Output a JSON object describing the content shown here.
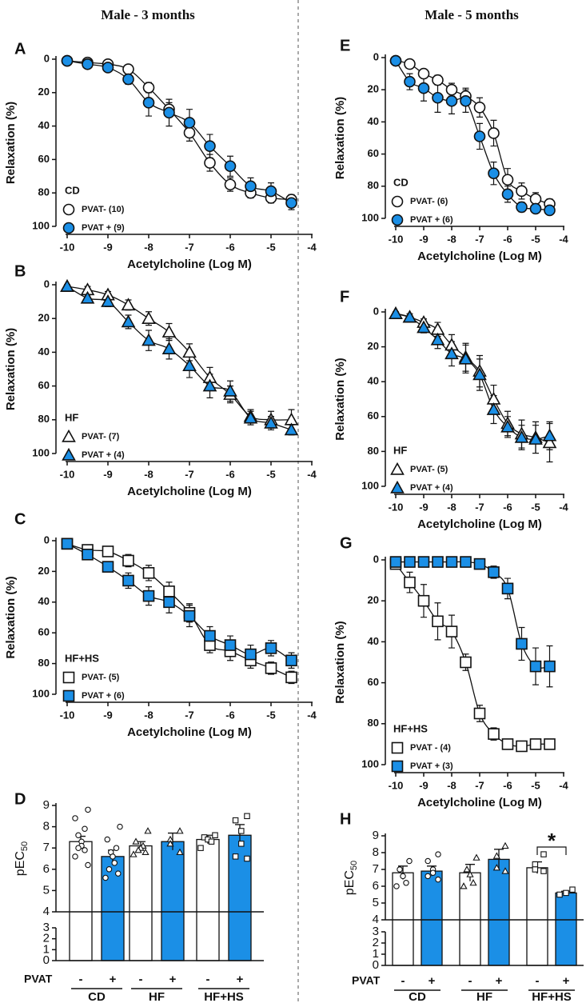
{
  "headers": [
    "Male - 3 months",
    "Male - 5 months"
  ],
  "chart_data": [
    {
      "type": "scatter",
      "panel": "A",
      "group": "CD",
      "marker": "circle",
      "xlabel": "Acetylcholine (Log M)",
      "ylabel": "Relaxation (%)",
      "x": [
        -10,
        -9.5,
        -9,
        -8.5,
        -8,
        -7.5,
        -7,
        -6.5,
        -6,
        -5.5,
        -5,
        -4.5
      ],
      "xlim": [
        -10,
        -4
      ],
      "xticks": [
        -10,
        -9,
        -8,
        -7,
        -6,
        -5,
        -4
      ],
      "ylim": [
        0,
        100
      ],
      "yticks": [
        0,
        20,
        40,
        60,
        80,
        100
      ],
      "y_inverted": true,
      "series": [
        {
          "name": "PVAT- (10)",
          "color": "#ffffff",
          "values": [
            1,
            2,
            3,
            6,
            17,
            30,
            44,
            62,
            75,
            80,
            83,
            84
          ],
          "errors": [
            1,
            1,
            1,
            2,
            3,
            4,
            5,
            5,
            4,
            3,
            3,
            3
          ]
        },
        {
          "name": "PVAT + (9)",
          "color": "#1b8fe6",
          "values": [
            1,
            3,
            5,
            12,
            26,
            32,
            38,
            52,
            64,
            76,
            79,
            86
          ],
          "errors": [
            1,
            1,
            2,
            3,
            8,
            8,
            8,
            7,
            6,
            5,
            5,
            4
          ]
        }
      ]
    },
    {
      "type": "scatter",
      "panel": "B",
      "group": "HF",
      "marker": "triangle",
      "xlabel": "Acetylcholine (Log M)",
      "ylabel": "Relaxation (%)",
      "x": [
        -10,
        -9.5,
        -9,
        -8.5,
        -8,
        -7.5,
        -7,
        -6.5,
        -6,
        -5.5,
        -5,
        -4.5
      ],
      "xlim": [
        -10,
        -4
      ],
      "xticks": [
        -10,
        -9,
        -8,
        -7,
        -6,
        -5,
        -4
      ],
      "ylim": [
        0,
        100
      ],
      "yticks": [
        0,
        20,
        40,
        60,
        80,
        100
      ],
      "y_inverted": true,
      "series": [
        {
          "name": "PVAT- (7)",
          "color": "#ffffff",
          "values": [
            1,
            3,
            6,
            12,
            20,
            28,
            40,
            55,
            65,
            78,
            80,
            80
          ],
          "errors": [
            1,
            2,
            2,
            3,
            4,
            5,
            5,
            6,
            5,
            4,
            5,
            6
          ]
        },
        {
          "name": "PVAT + (4)",
          "color": "#1b8fe6",
          "values": [
            1,
            8,
            10,
            22,
            33,
            38,
            48,
            60,
            63,
            79,
            82,
            86
          ],
          "errors": [
            1,
            2,
            3,
            4,
            6,
            6,
            7,
            7,
            6,
            4,
            4,
            3
          ]
        }
      ]
    },
    {
      "type": "scatter",
      "panel": "C",
      "group": "HF+HS",
      "marker": "square",
      "xlabel": "Acetylcholine (Log M)",
      "ylabel": "Relaxation (%)",
      "x": [
        -10,
        -9.5,
        -9,
        -8.5,
        -8,
        -7.5,
        -7,
        -6.5,
        -6,
        -5.5,
        -5,
        -4.5
      ],
      "xlim": [
        -10,
        -4
      ],
      "xticks": [
        -10,
        -9,
        -8,
        -7,
        -6,
        -5,
        -4
      ],
      "ylim": [
        0,
        100
      ],
      "yticks": [
        0,
        20,
        40,
        60,
        80,
        100
      ],
      "y_inverted": true,
      "series": [
        {
          "name": "PVAT- (5)",
          "color": "#ffffff",
          "values": [
            2,
            6,
            7,
            13,
            21,
            33,
            47,
            68,
            72,
            78,
            83,
            89
          ],
          "errors": [
            1,
            2,
            3,
            4,
            5,
            6,
            6,
            5,
            6,
            5,
            4,
            4
          ]
        },
        {
          "name": "PVAT + (6)",
          "color": "#1b8fe6",
          "values": [
            2,
            9,
            17,
            26,
            36,
            40,
            49,
            62,
            68,
            74,
            70,
            78
          ],
          "errors": [
            1,
            2,
            3,
            5,
            6,
            7,
            7,
            6,
            6,
            6,
            5,
            5
          ]
        }
      ]
    },
    {
      "type": "bar",
      "panel": "D",
      "ylabel": "pEC",
      "ylabel_subscript": "50",
      "factor": "PVAT",
      "categories": [
        "CD",
        "HF",
        "HF+HS"
      ],
      "markers": [
        "circle",
        "triangle",
        "square"
      ],
      "ylim": [
        0,
        9
      ],
      "yticks": [
        0,
        1,
        2,
        3,
        4,
        5,
        6,
        7,
        8,
        9
      ],
      "axis_break": [
        3,
        4
      ],
      "series": [
        {
          "name": "-",
          "color": "#ffffff",
          "values": [
            7.3,
            7.1,
            7.4
          ],
          "errors": [
            0.25,
            0.2,
            0.2
          ],
          "points": [
            [
              8.8,
              8.4,
              7.9,
              7.6,
              7.3,
              7.1,
              7.0,
              6.9,
              6.6,
              6.2
            ],
            [
              7.8,
              7.3,
              7.1,
              7.0,
              6.9,
              6.8,
              6.7
            ],
            [
              7.6,
              7.5,
              7.4,
              7.3,
              7.0
            ]
          ]
        },
        {
          "name": "+",
          "color": "#1b8fe6",
          "values": [
            6.6,
            7.3,
            7.6
          ],
          "errors": [
            0.3,
            0.4,
            0.5
          ],
          "points": [
            [
              8.0,
              7.4,
              7.0,
              6.8,
              6.6,
              6.3,
              6.0,
              5.8,
              5.6
            ],
            [
              7.8,
              7.4,
              7.2,
              6.8
            ],
            [
              8.5,
              8.3,
              7.8,
              7.2,
              6.6,
              6.5
            ]
          ]
        }
      ]
    },
    {
      "type": "scatter",
      "panel": "E",
      "group": "CD",
      "marker": "circle",
      "xlabel": "Acetylcholine (Log M)",
      "ylabel": "Relaxation (%)",
      "x": [
        -10,
        -9.5,
        -9,
        -8.5,
        -8,
        -7.5,
        -7,
        -6.5,
        -6,
        -5.5,
        -5,
        -4.5
      ],
      "xlim": [
        -10,
        -4
      ],
      "xticks": [
        -10,
        -9,
        -8,
        -7,
        -6,
        -5,
        -4
      ],
      "ylim": [
        0,
        100
      ],
      "yticks": [
        0,
        20,
        40,
        60,
        80,
        100
      ],
      "y_inverted": true,
      "series": [
        {
          "name": "PVAT- (6)",
          "color": "#ffffff",
          "values": [
            2,
            4,
            10,
            14,
            20,
            24,
            31,
            47,
            76,
            83,
            88,
            91
          ],
          "errors": [
            1,
            2,
            2,
            3,
            4,
            5,
            6,
            8,
            7,
            5,
            4,
            3
          ]
        },
        {
          "name": "PVAT + (6)",
          "color": "#1b8fe6",
          "values": [
            2,
            15,
            19,
            25,
            27,
            27,
            49,
            72,
            85,
            93,
            94,
            95
          ],
          "errors": [
            1,
            5,
            8,
            9,
            8,
            7,
            8,
            7,
            5,
            3,
            2,
            2
          ]
        }
      ]
    },
    {
      "type": "scatter",
      "panel": "F",
      "group": "HF",
      "marker": "triangle",
      "xlabel": "Acetylcholine (Log M)",
      "ylabel": "Relaxation (%)",
      "x": [
        -10,
        -9.5,
        -9,
        -8.5,
        -8,
        -7.5,
        -7,
        -6.5,
        -6,
        -5.5,
        -5,
        -4.5
      ],
      "xlim": [
        -10,
        -4
      ],
      "xticks": [
        -10,
        -9,
        -8,
        -7,
        -6,
        -5,
        -4
      ],
      "ylim": [
        0,
        100
      ],
      "yticks": [
        0,
        20,
        40,
        60,
        80,
        100
      ],
      "y_inverted": true,
      "series": [
        {
          "name": "PVAT- (5)",
          "color": "#ffffff",
          "values": [
            1,
            3,
            6,
            10,
            19,
            26,
            34,
            50,
            64,
            70,
            72,
            75
          ],
          "errors": [
            1,
            1,
            2,
            4,
            6,
            8,
            9,
            8,
            7,
            8,
            9,
            11
          ]
        },
        {
          "name": "PVAT + (4)",
          "color": "#1b8fe6",
          "values": [
            1,
            3,
            9,
            16,
            24,
            27,
            36,
            56,
            66,
            72,
            73,
            71
          ],
          "errors": [
            1,
            2,
            3,
            5,
            7,
            8,
            9,
            8,
            6,
            7,
            8,
            8
          ]
        }
      ]
    },
    {
      "type": "scatter",
      "panel": "G",
      "group": "HF+HS",
      "marker": "square",
      "xlabel": "Acetylcholine (Log M)",
      "ylabel": "Relaxation (%)",
      "x": [
        -10,
        -9.5,
        -9,
        -8.5,
        -8,
        -7.5,
        -7,
        -6.5,
        -6,
        -5.5,
        -5,
        -4.5
      ],
      "xlim": [
        -10,
        -4
      ],
      "xticks": [
        -10,
        -9,
        -8,
        -7,
        -6,
        -5,
        -4
      ],
      "ylim": [
        0,
        100
      ],
      "yticks": [
        0,
        20,
        40,
        60,
        80,
        100
      ],
      "y_inverted": true,
      "series": [
        {
          "name": "PVAT - (4)",
          "color": "#ffffff",
          "values": [
            2,
            11,
            20,
            30,
            35,
            50,
            75,
            85,
            90,
            91,
            90,
            90
          ],
          "errors": [
            2,
            5,
            8,
            9,
            8,
            4,
            4,
            3,
            2,
            2,
            2,
            2
          ]
        },
        {
          "name": "PVAT + (3)",
          "color": "#1b8fe6",
          "values": [
            1,
            1,
            1,
            1,
            1,
            1,
            2,
            6,
            14,
            41,
            52,
            52
          ],
          "errors": [
            1,
            1,
            1,
            1,
            1,
            1,
            1,
            3,
            5,
            8,
            9,
            10
          ]
        }
      ]
    },
    {
      "type": "bar",
      "panel": "H",
      "ylabel": "pEC",
      "ylabel_subscript": "50",
      "factor": "PVAT",
      "categories": [
        "CD",
        "HF",
        "HF+HS"
      ],
      "markers": [
        "circle",
        "triangle",
        "square"
      ],
      "ylim": [
        0,
        9
      ],
      "yticks": [
        0,
        1,
        2,
        3,
        4,
        5,
        6,
        7,
        8,
        9
      ],
      "axis_break": [
        3,
        4
      ],
      "annotation": "*",
      "series": [
        {
          "name": "-",
          "color": "#ffffff",
          "values": [
            6.8,
            6.8,
            7.1
          ],
          "errors": [
            0.4,
            0.5,
            0.35
          ],
          "points": [
            [
              7.5,
              7.0,
              6.6,
              6.2,
              6.0
            ],
            [
              7.7,
              7.0,
              6.7,
              6.2,
              6.0
            ],
            [
              7.9,
              7.3,
              7.0,
              6.9
            ]
          ]
        },
        {
          "name": "+",
          "color": "#1b8fe6",
          "values": [
            6.9,
            7.6,
            5.6
          ],
          "errors": [
            0.3,
            0.6,
            0.1
          ],
          "points": [
            [
              7.9,
              7.5,
              7.0,
              6.8,
              6.6,
              6.4
            ],
            [
              8.4,
              7.8,
              7.1,
              6.9
            ],
            [
              5.8,
              5.6,
              5.5
            ]
          ]
        }
      ]
    }
  ]
}
